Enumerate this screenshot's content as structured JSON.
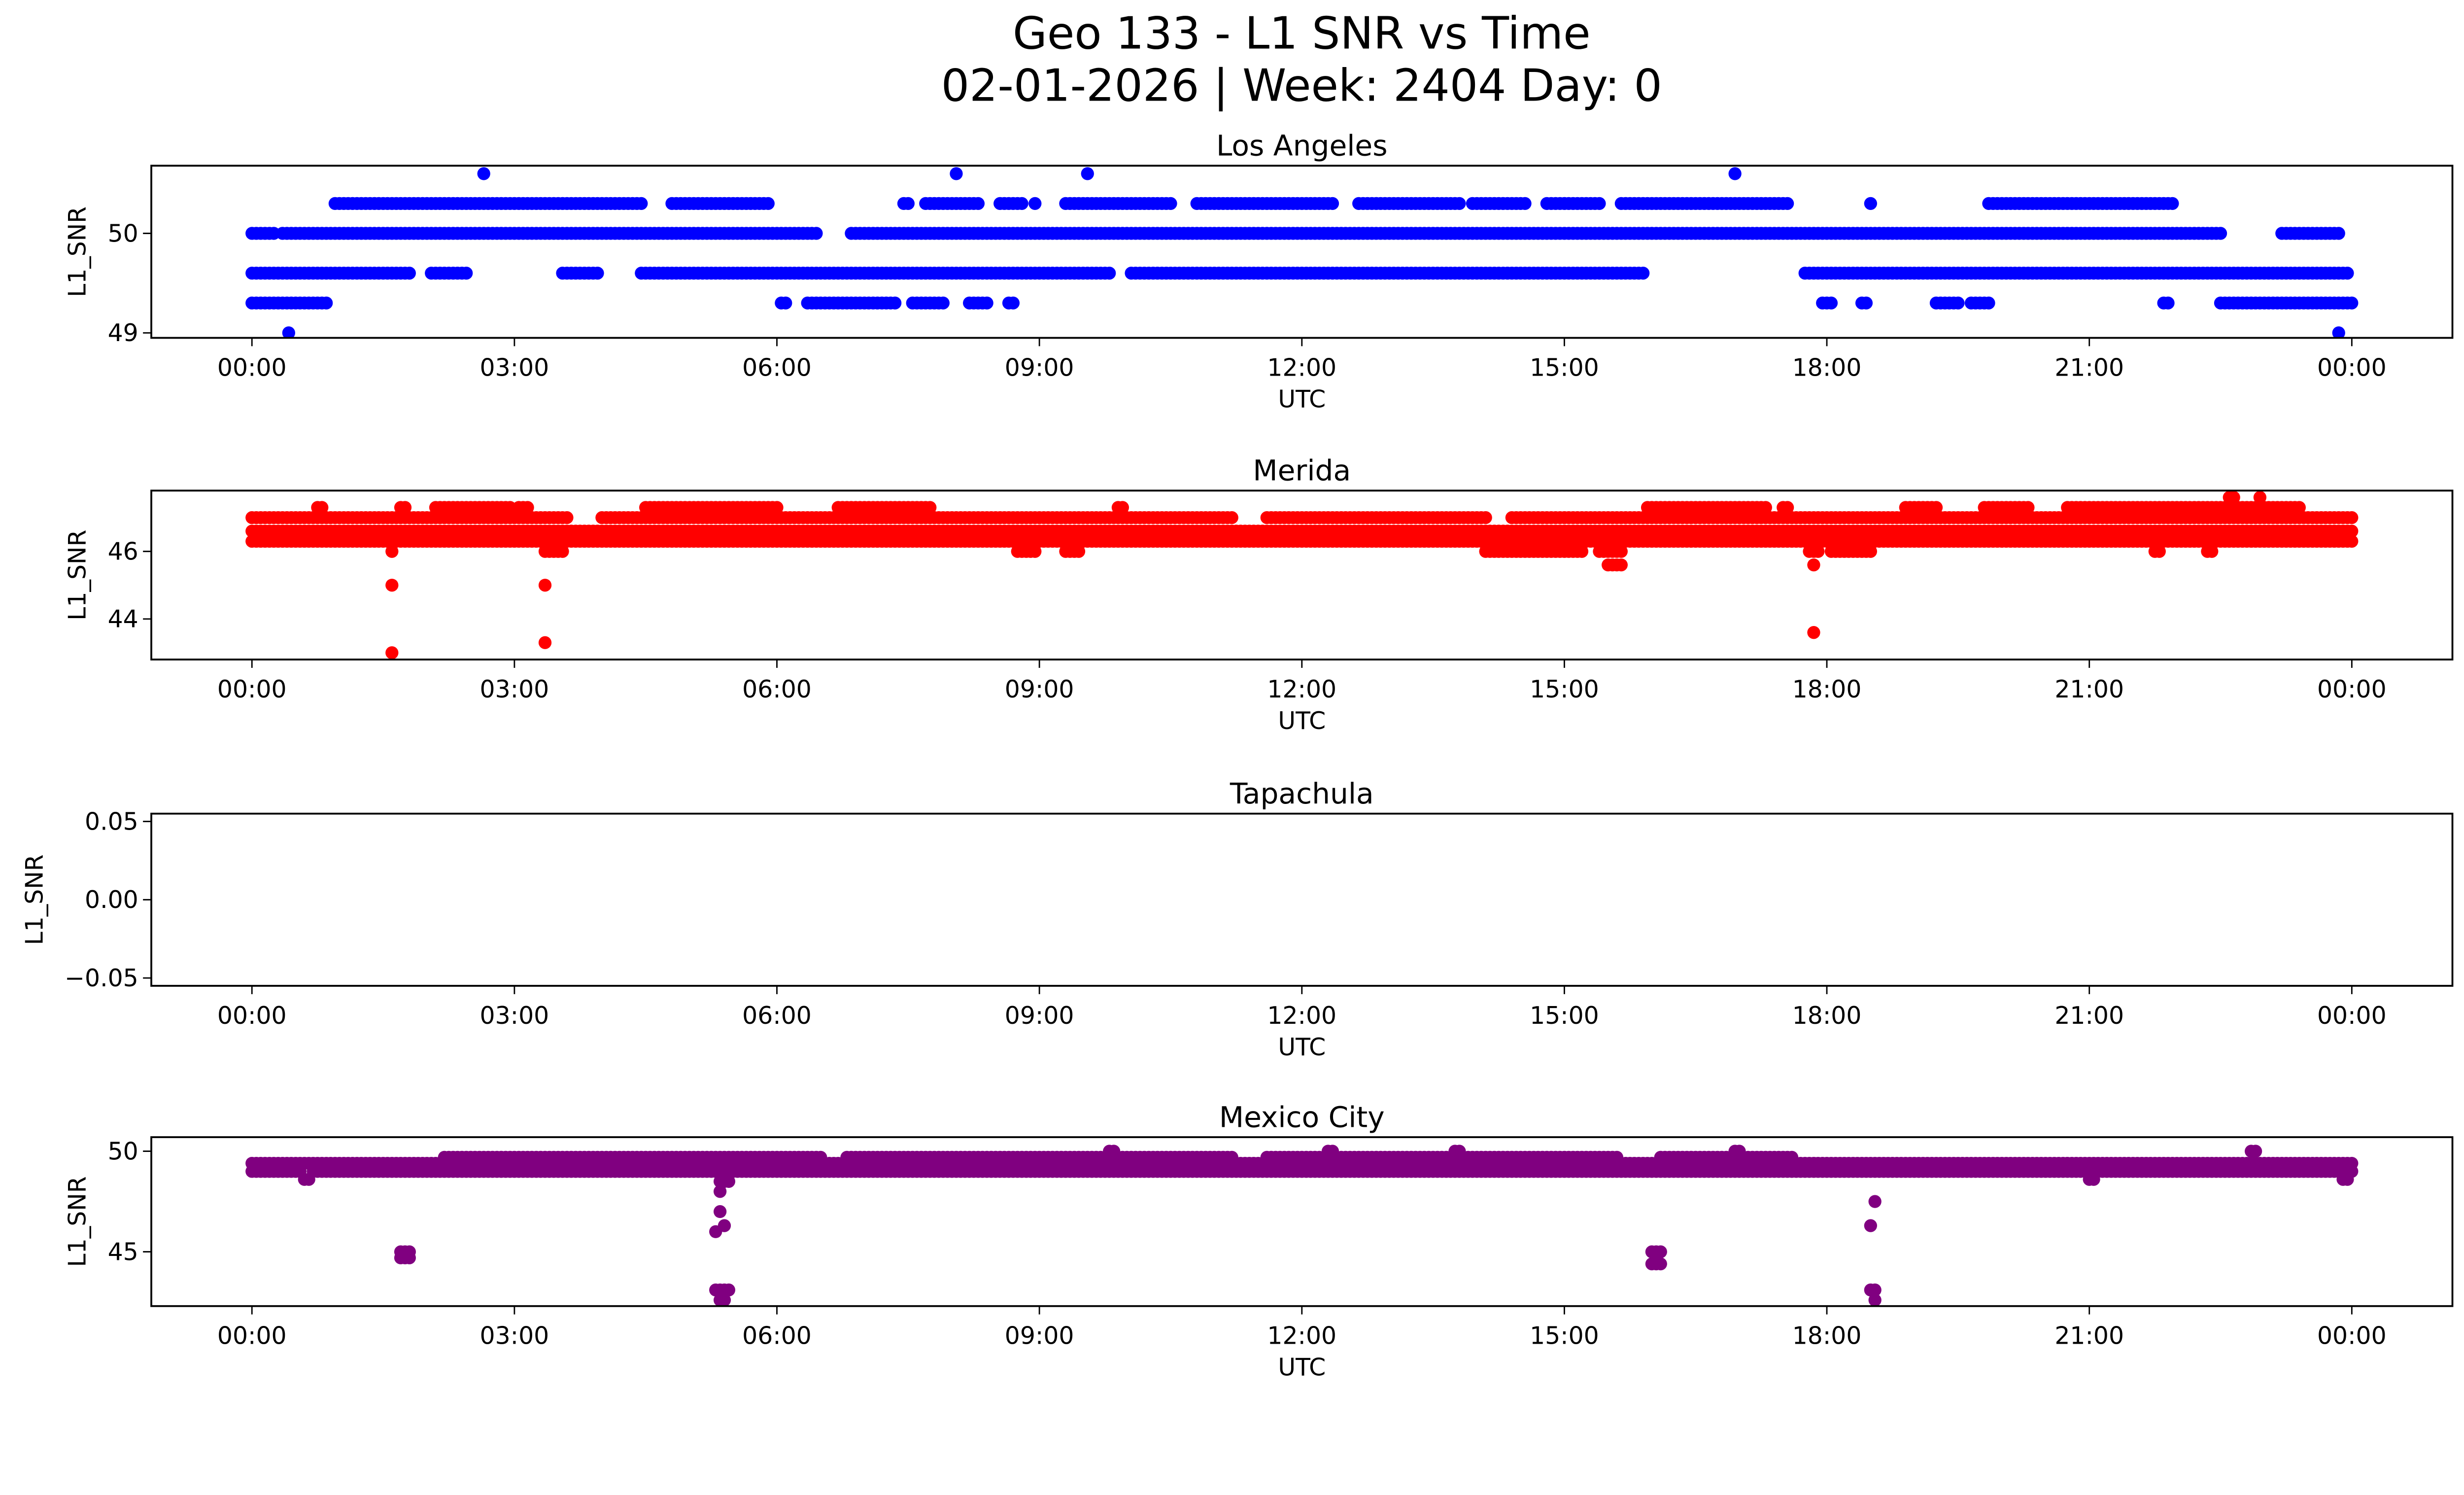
{
  "figure": {
    "title_line1": "Geo 133 - L1 SNR vs Time",
    "title_line2": "02-01-2026 | Week: 2404 Day: 0"
  },
  "chart_data": [
    {
      "type": "scatter",
      "title": "Los Angeles",
      "xlabel": "UTC",
      "ylabel": "L1_SNR",
      "color": "#0000ff",
      "x_unit": "hours",
      "xlim": [
        -1.15,
        25.15
      ],
      "ylim": [
        48.95,
        50.68
      ],
      "xticks": [
        0,
        3,
        6,
        9,
        12,
        15,
        18,
        21,
        24
      ],
      "xtick_labels": [
        "00:00",
        "03:00",
        "06:00",
        "09:00",
        "12:00",
        "15:00",
        "18:00",
        "21:00",
        "00:00"
      ],
      "yticks": [
        49,
        50
      ],
      "ytick_labels": [
        "49",
        "50"
      ],
      "segments": [
        {
          "y": 50.0,
          "runs": [
            [
              0.0,
              0.25
            ],
            [
              0.35,
              6.45
            ],
            [
              6.85,
              22.5
            ],
            [
              23.2,
              23.85
            ]
          ]
        },
        {
          "y": 50.3,
          "runs": [
            [
              0.95,
              4.45
            ],
            [
              4.8,
              5.9
            ],
            [
              7.45,
              7.5
            ],
            [
              7.7,
              8.3
            ],
            [
              8.55,
              8.8
            ],
            [
              8.95,
              8.95
            ],
            [
              9.3,
              10.5
            ],
            [
              10.8,
              12.35
            ],
            [
              12.65,
              13.8
            ],
            [
              13.95,
              14.55
            ],
            [
              14.8,
              15.4
            ],
            [
              15.65,
              17.55
            ],
            [
              18.5,
              18.5
            ],
            [
              19.85,
              21.95
            ]
          ]
        },
        {
          "y": 49.6,
          "runs": [
            [
              0.0,
              1.8
            ],
            [
              2.05,
              2.45
            ],
            [
              3.55,
              3.95
            ],
            [
              4.45,
              9.8
            ],
            [
              10.05,
              15.9
            ],
            [
              17.75,
              23.95
            ]
          ]
        },
        {
          "y": 49.3,
          "runs": [
            [
              0.0,
              0.85
            ],
            [
              6.05,
              6.1
            ],
            [
              6.35,
              7.35
            ],
            [
              7.55,
              7.9
            ],
            [
              8.2,
              8.4
            ],
            [
              8.65,
              8.7
            ],
            [
              17.95,
              18.05
            ],
            [
              18.4,
              18.45
            ],
            [
              19.25,
              19.5
            ],
            [
              19.65,
              19.85
            ],
            [
              21.85,
              21.9
            ],
            [
              22.5,
              24.0
            ]
          ]
        },
        {
          "y": 50.6,
          "runs": [
            [
              2.65,
              2.65
            ],
            [
              8.05,
              8.05
            ],
            [
              9.55,
              9.55
            ],
            [
              16.95,
              16.95
            ]
          ]
        },
        {
          "y": 49.0,
          "runs": [
            [
              0.42,
              0.42
            ],
            [
              23.85,
              23.85
            ]
          ]
        }
      ]
    },
    {
      "type": "scatter",
      "title": "Merida",
      "xlabel": "UTC",
      "ylabel": "L1_SNR",
      "color": "#ff0000",
      "x_unit": "hours",
      "xlim": [
        -1.15,
        25.15
      ],
      "ylim": [
        42.8,
        47.8
      ],
      "xticks": [
        0,
        3,
        6,
        9,
        12,
        15,
        18,
        21,
        24
      ],
      "xtick_labels": [
        "00:00",
        "03:00",
        "06:00",
        "09:00",
        "12:00",
        "15:00",
        "18:00",
        "21:00",
        "00:00"
      ],
      "yticks": [
        44,
        46
      ],
      "ytick_labels": [
        "44",
        "46"
      ],
      "segments": [
        {
          "y": 46.3,
          "runs": [
            [
              0.0,
              24.0
            ]
          ]
        },
        {
          "y": 46.6,
          "runs": [
            [
              0.0,
              24.0
            ]
          ]
        },
        {
          "y": 47.0,
          "runs": [
            [
              0.0,
              3.6
            ],
            [
              4.0,
              11.2
            ],
            [
              11.6,
              14.1
            ],
            [
              14.4,
              24.0
            ]
          ]
        },
        {
          "y": 47.3,
          "runs": [
            [
              0.75,
              0.8
            ],
            [
              1.7,
              1.75
            ],
            [
              2.1,
              2.95
            ],
            [
              3.05,
              3.15
            ],
            [
              4.5,
              6.0
            ],
            [
              6.7,
              7.75
            ],
            [
              9.9,
              9.95
            ],
            [
              15.95,
              17.3
            ],
            [
              17.5,
              17.55
            ],
            [
              18.9,
              19.25
            ],
            [
              19.8,
              20.3
            ],
            [
              20.75,
              23.4
            ]
          ]
        },
        {
          "y": 46.0,
          "runs": [
            [
              1.6,
              1.6
            ],
            [
              3.35,
              3.55
            ],
            [
              8.75,
              8.95
            ],
            [
              9.3,
              9.45
            ],
            [
              14.1,
              15.2
            ],
            [
              15.4,
              15.65
            ],
            [
              17.8,
              17.9
            ],
            [
              18.05,
              18.5
            ],
            [
              21.75,
              21.8
            ],
            [
              22.35,
              22.4
            ]
          ]
        },
        {
          "y": 45.6,
          "runs": [
            [
              15.5,
              15.65
            ],
            [
              17.85,
              17.85
            ]
          ]
        },
        {
          "y": 47.6,
          "runs": [
            [
              22.6,
              22.65
            ],
            [
              22.95,
              22.95
            ]
          ]
        },
        {
          "y": 45.0,
          "runs": [
            [
              1.6,
              1.6
            ],
            [
              3.35,
              3.35
            ]
          ]
        },
        {
          "y": 43.3,
          "runs": [
            [
              3.35,
              3.35
            ]
          ]
        },
        {
          "y": 43.6,
          "runs": [
            [
              17.85,
              17.85
            ]
          ]
        },
        {
          "y": 43.0,
          "runs": [
            [
              1.6,
              1.6
            ]
          ]
        }
      ]
    },
    {
      "type": "scatter",
      "title": "Tapachula",
      "xlabel": "UTC",
      "ylabel": "L1_SNR",
      "color": "#000000",
      "x_unit": "hours",
      "xlim": [
        -1.15,
        25.15
      ],
      "ylim": [
        -0.055,
        0.055
      ],
      "xticks": [
        0,
        3,
        6,
        9,
        12,
        15,
        18,
        21,
        24
      ],
      "xtick_labels": [
        "00:00",
        "03:00",
        "06:00",
        "09:00",
        "12:00",
        "15:00",
        "18:00",
        "21:00",
        "00:00"
      ],
      "yticks": [
        -0.05,
        0.0,
        0.05
      ],
      "ytick_labels": [
        "−0.05",
        "0.00",
        "0.05"
      ],
      "segments": []
    },
    {
      "type": "scatter",
      "title": "Mexico City",
      "xlabel": "UTC",
      "ylabel": "L1_SNR",
      "color": "#800080",
      "x_unit": "hours",
      "xlim": [
        -1.15,
        25.15
      ],
      "ylim": [
        42.3,
        50.7
      ],
      "xticks": [
        0,
        3,
        6,
        9,
        12,
        15,
        18,
        21,
        24
      ],
      "xtick_labels": [
        "00:00",
        "03:00",
        "06:00",
        "09:00",
        "12:00",
        "15:00",
        "18:00",
        "21:00",
        "00:00"
      ],
      "yticks": [
        45,
        50
      ],
      "ytick_labels": [
        "45",
        "50"
      ],
      "segments": [
        {
          "y": 49.0,
          "runs": [
            [
              0.0,
              0.55
            ],
            [
              0.7,
              24.0
            ]
          ]
        },
        {
          "y": 49.4,
          "runs": [
            [
              0.0,
              24.0
            ]
          ]
        },
        {
          "y": 49.7,
          "runs": [
            [
              2.2,
              6.5
            ],
            [
              6.8,
              11.2
            ],
            [
              11.6,
              15.6
            ],
            [
              16.1,
              17.6
            ]
          ]
        },
        {
          "y": 50.0,
          "runs": [
            [
              9.8,
              9.85
            ],
            [
              12.3,
              12.35
            ],
            [
              13.75,
              13.8
            ],
            [
              16.95,
              17.0
            ],
            [
              22.85,
              22.9
            ]
          ]
        },
        {
          "y": 48.6,
          "runs": [
            [
              0.6,
              0.65
            ],
            [
              21.0,
              21.05
            ],
            [
              23.9,
              23.95
            ]
          ]
        },
        {
          "y": 48.5,
          "runs": [
            [
              5.35,
              5.45
            ]
          ]
        },
        {
          "y": 48.0,
          "runs": [
            [
              5.35,
              5.35
            ]
          ]
        },
        {
          "y": 47.5,
          "runs": [
            [
              18.55,
              18.55
            ]
          ]
        },
        {
          "y": 46.3,
          "runs": [
            [
              18.5,
              18.5
            ]
          ]
        },
        {
          "y": 47.0,
          "runs": [
            [
              5.35,
              5.35
            ]
          ]
        },
        {
          "y": 46.3,
          "runs": [
            [
              5.4,
              5.4
            ]
          ]
        },
        {
          "y": 46.0,
          "runs": [
            [
              5.3,
              5.3
            ]
          ]
        },
        {
          "y": 45.0,
          "runs": [
            [
              1.7,
              1.8
            ],
            [
              16.0,
              16.1
            ]
          ]
        },
        {
          "y": 44.7,
          "runs": [
            [
              1.7,
              1.8
            ]
          ]
        },
        {
          "y": 44.4,
          "runs": [
            [
              16.0,
              16.1
            ]
          ]
        },
        {
          "y": 43.1,
          "runs": [
            [
              5.3,
              5.45
            ],
            [
              18.5,
              18.55
            ]
          ]
        },
        {
          "y": 42.6,
          "runs": [
            [
              5.35,
              5.4
            ],
            [
              18.55,
              18.55
            ]
          ]
        }
      ]
    }
  ]
}
